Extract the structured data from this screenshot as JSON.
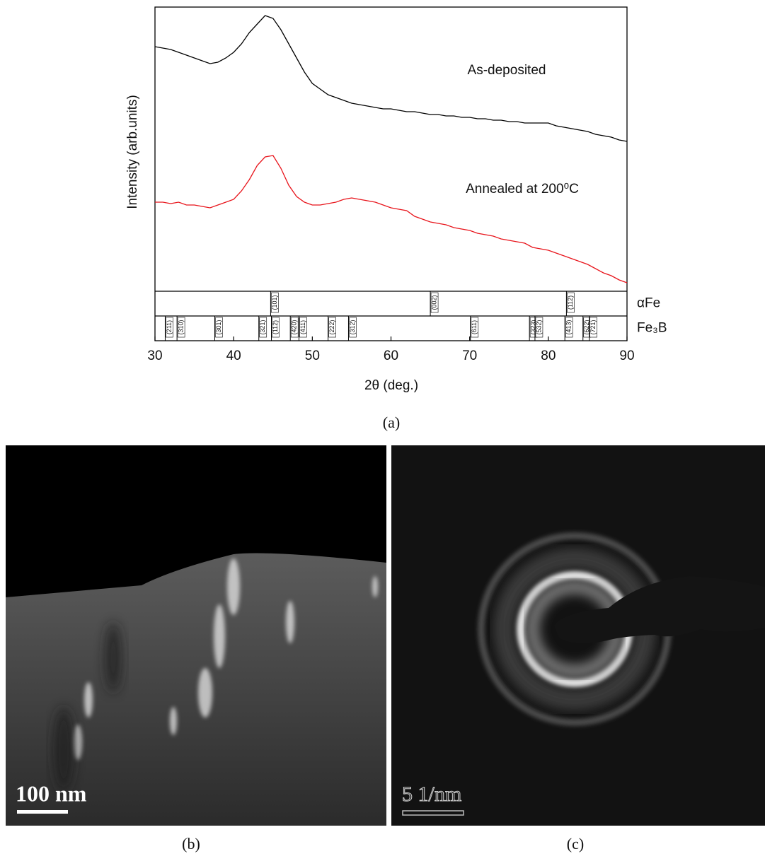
{
  "chart_data": {
    "type": "line",
    "panel_label": "(a)",
    "xlabel": "2θ (deg.)",
    "ylabel": "Intensity (arb.units)",
    "xlim": [
      30,
      90
    ],
    "xticks": [
      30,
      40,
      50,
      60,
      70,
      80,
      90
    ],
    "ylim": [
      0,
      100
    ],
    "x": [
      30,
      31,
      32,
      33,
      34,
      35,
      36,
      37,
      38,
      39,
      40,
      41,
      42,
      43,
      44,
      45,
      46,
      47,
      48,
      49,
      50,
      51,
      52,
      53,
      54,
      55,
      56,
      57,
      58,
      59,
      60,
      61,
      62,
      63,
      64,
      65,
      66,
      67,
      68,
      69,
      70,
      71,
      72,
      73,
      74,
      75,
      76,
      77,
      78,
      79,
      80,
      81,
      82,
      83,
      84,
      85,
      86,
      87,
      88,
      89,
      90
    ],
    "series": [
      {
        "name": "As-deposited",
        "color": "#000000",
        "values": [
          86,
          85.5,
          85,
          84,
          83,
          82,
          81,
          80,
          80.5,
          82,
          84,
          87,
          91,
          94,
          97,
          96,
          92,
          87,
          82,
          77,
          73,
          71,
          69,
          68,
          67,
          66,
          65.5,
          65,
          64.5,
          64,
          64,
          63.5,
          63,
          63,
          62.5,
          62,
          62,
          61.5,
          61.5,
          61,
          61,
          60.5,
          60.5,
          60,
          60,
          59.5,
          59.5,
          59,
          59,
          59,
          59,
          58,
          57.5,
          57,
          56.5,
          56,
          55,
          54.5,
          54,
          53,
          52.5
        ]
      },
      {
        "name": "Annealed at 200⁰C",
        "color": "#e8141b",
        "values": [
          31,
          31,
          30.5,
          31,
          30,
          30,
          29.5,
          29,
          30,
          31,
          32,
          35,
          39,
          44,
          47,
          47.5,
          43,
          37,
          33,
          31,
          30,
          30,
          30.5,
          31,
          32,
          32.5,
          32,
          31.5,
          31,
          30,
          29,
          28.5,
          28,
          26,
          25,
          24,
          23.5,
          23,
          22,
          21.5,
          21,
          20,
          19.5,
          19,
          18,
          17.5,
          17,
          16.5,
          15,
          14.5,
          14,
          13,
          12,
          11,
          10,
          9,
          7.5,
          6,
          5,
          3.5,
          2.5
        ]
      }
    ],
    "reference_patterns": [
      {
        "name": "αFe",
        "x": [
          44.7,
          65.0,
          82.3
        ],
        "labels": [
          "(101)",
          "(002)",
          "(112)"
        ]
      },
      {
        "name": "Fe₃B",
        "x": [
          31.3,
          32.8,
          37.6,
          43.2,
          44.8,
          47.2,
          48.3,
          52.0,
          54.6,
          70.1,
          77.6,
          78.3,
          82.1,
          84.4,
          85.2
        ],
        "labels": [
          "(211)",
          "(310)",
          "(301)",
          "(321)",
          "(112)",
          "(420)",
          "(411)",
          "(222)",
          "(312)",
          "(611)",
          "(323)",
          "(532)",
          "(413)",
          "(622)",
          "(721)"
        ]
      }
    ]
  },
  "panels": [
    {
      "caption": "(b)",
      "scale_bar": "100 nm"
    },
    {
      "caption": "(c)",
      "scale_bar": "5 1/nm"
    }
  ]
}
